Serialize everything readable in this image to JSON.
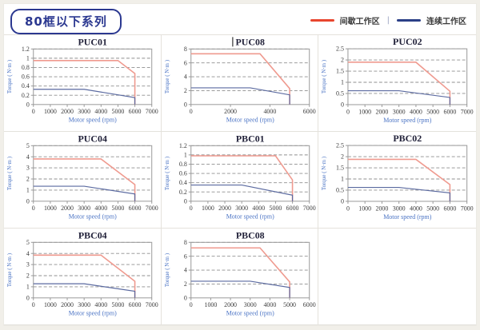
{
  "header": {
    "title": "80框以下系列"
  },
  "legend": {
    "separator": "|",
    "items": [
      {
        "label": "间歇工作区",
        "color": "#e8452e"
      },
      {
        "label": "连续工作区",
        "color": "#2b3f87"
      }
    ]
  },
  "colors": {
    "accent_navy": "#2b3890",
    "chart_red": "#ef9a8f",
    "chart_blue": "#5b6aa0",
    "grid_dash": "#8f8f8f",
    "plot_border": "#999999",
    "axis_label_blue": "#4a73c4",
    "tick_text": "#3c3c3c",
    "title_text": "#22223a"
  },
  "chart_data": [
    {
      "type": "line",
      "title": "PUC01",
      "title_cursor": false,
      "xlabel": "Motor speed (rpm)",
      "ylabel": "Torque ( N·m )",
      "xlim": [
        0,
        7000
      ],
      "xticks": [
        0,
        1000,
        2000,
        3000,
        4000,
        5000,
        6000,
        7000
      ],
      "ylim": [
        0,
        1.2
      ],
      "yticks": [
        0,
        0.2,
        0.4,
        0.6,
        0.8,
        1,
        1.2
      ],
      "grid": "horizontal-dashed",
      "legend_position": "none",
      "series": [
        {
          "name": "间歇工作区",
          "role": "intermittent",
          "points": [
            [
              0,
              0.95
            ],
            [
              5000,
              0.95
            ],
            [
              6000,
              0.67
            ],
            [
              6000,
              0
            ]
          ]
        },
        {
          "name": "连续工作区",
          "role": "continuous",
          "points": [
            [
              0,
              0.33
            ],
            [
              3000,
              0.33
            ],
            [
              6000,
              0.15
            ],
            [
              6000,
              0
            ]
          ]
        }
      ]
    },
    {
      "type": "line",
      "title": "PUC08",
      "title_cursor": true,
      "xlabel": "Motor speed (rpm)",
      "ylabel": "Torque ( N·m )",
      "xlim": [
        0,
        6000
      ],
      "xticks": [
        0,
        2000,
        4000,
        6000
      ],
      "ylim": [
        0,
        8
      ],
      "yticks": [
        0,
        2,
        4,
        6,
        8
      ],
      "grid": "horizontal-dashed",
      "legend_position": "none",
      "series": [
        {
          "name": "间歇工作区",
          "role": "intermittent",
          "points": [
            [
              0,
              7.3
            ],
            [
              3500,
              7.3
            ],
            [
              5000,
              2.3
            ],
            [
              5000,
              0
            ]
          ]
        },
        {
          "name": "连续工作区",
          "role": "continuous",
          "points": [
            [
              0,
              2.4
            ],
            [
              3000,
              2.4
            ],
            [
              5000,
              1.4
            ],
            [
              5000,
              0
            ]
          ]
        }
      ]
    },
    {
      "type": "line",
      "title": "PUC02",
      "title_cursor": false,
      "xlabel": "Motor speed (rpm)",
      "ylabel": "Torque ( N·m )",
      "xlim": [
        0,
        7000
      ],
      "xticks": [
        0,
        1000,
        2000,
        3000,
        4000,
        5000,
        6000,
        7000
      ],
      "ylim": [
        0,
        2.5
      ],
      "yticks": [
        0,
        0.5,
        1,
        1.5,
        2,
        2.5
      ],
      "grid": "horizontal-dashed",
      "legend_position": "none",
      "series": [
        {
          "name": "间歇工作区",
          "role": "intermittent",
          "points": [
            [
              0,
              1.9
            ],
            [
              4000,
              1.9
            ],
            [
              6000,
              0.6
            ],
            [
              6000,
              0
            ]
          ]
        },
        {
          "name": "连续工作区",
          "role": "continuous",
          "points": [
            [
              0,
              0.62
            ],
            [
              3000,
              0.62
            ],
            [
              6000,
              0.32
            ],
            [
              6000,
              0
            ]
          ]
        }
      ]
    },
    {
      "type": "line",
      "title": "PUC04",
      "title_cursor": false,
      "xlabel": "Motor speed (rpm)",
      "ylabel": "Torque ( N·m )",
      "xlim": [
        0,
        7000
      ],
      "xticks": [
        0,
        1000,
        2000,
        3000,
        4000,
        5000,
        6000,
        7000
      ],
      "ylim": [
        0,
        5
      ],
      "yticks": [
        0,
        1,
        2,
        3,
        4,
        5
      ],
      "grid": "horizontal-dashed",
      "legend_position": "none",
      "series": [
        {
          "name": "间歇工作区",
          "role": "intermittent",
          "points": [
            [
              0,
              3.8
            ],
            [
              4000,
              3.8
            ],
            [
              6000,
              1.5
            ],
            [
              6000,
              0
            ]
          ]
        },
        {
          "name": "连续工作区",
          "role": "continuous",
          "points": [
            [
              0,
              1.35
            ],
            [
              3000,
              1.35
            ],
            [
              6000,
              0.65
            ],
            [
              6000,
              0
            ]
          ]
        }
      ]
    },
    {
      "type": "line",
      "title": "PBC01",
      "title_cursor": false,
      "xlabel": "Motor speed (rpm)",
      "ylabel": "Torque ( N·m )",
      "xlim": [
        0,
        7000
      ],
      "xticks": [
        0,
        1000,
        2000,
        3000,
        4000,
        5000,
        6000,
        7000
      ],
      "ylim": [
        0,
        1.2
      ],
      "yticks": [
        0,
        0.2,
        0.4,
        0.6,
        0.8,
        1,
        1.2
      ],
      "grid": "horizontal-dashed",
      "legend_position": "none",
      "series": [
        {
          "name": "间歇工作区",
          "role": "intermittent",
          "points": [
            [
              0,
              0.98
            ],
            [
              5000,
              0.98
            ],
            [
              6000,
              0.46
            ],
            [
              6000,
              0
            ]
          ]
        },
        {
          "name": "连续工作区",
          "role": "continuous",
          "points": [
            [
              0,
              0.35
            ],
            [
              3000,
              0.35
            ],
            [
              6000,
              0.13
            ],
            [
              6000,
              0
            ]
          ]
        }
      ]
    },
    {
      "type": "line",
      "title": "PBC02",
      "title_cursor": false,
      "xlabel": "Motor speed (rpm)",
      "ylabel": "Torque ( N·m )",
      "xlim": [
        0,
        7000
      ],
      "xticks": [
        0,
        1000,
        2000,
        3000,
        4000,
        5000,
        6000,
        7000
      ],
      "ylim": [
        0,
        2.5
      ],
      "yticks": [
        0,
        0.5,
        1,
        1.5,
        2,
        2.5
      ],
      "grid": "horizontal-dashed",
      "legend_position": "none",
      "series": [
        {
          "name": "间歇工作区",
          "role": "intermittent",
          "points": [
            [
              0,
              1.88
            ],
            [
              4000,
              1.88
            ],
            [
              6000,
              0.75
            ],
            [
              6000,
              0
            ]
          ]
        },
        {
          "name": "连续工作区",
          "role": "continuous",
          "points": [
            [
              0,
              0.62
            ],
            [
              3000,
              0.62
            ],
            [
              6000,
              0.38
            ],
            [
              6000,
              0
            ]
          ]
        }
      ]
    },
    {
      "type": "line",
      "title": "PBC04",
      "title_cursor": false,
      "xlabel": "Motor speed (rpm)",
      "ylabel": "Torque ( N·m )",
      "xlim": [
        0,
        7000
      ],
      "xticks": [
        0,
        1000,
        2000,
        3000,
        4000,
        5000,
        6000,
        7000
      ],
      "ylim": [
        0,
        5
      ],
      "yticks": [
        0,
        1,
        2,
        3,
        4,
        5
      ],
      "grid": "horizontal-dashed",
      "legend_position": "none",
      "series": [
        {
          "name": "间歇工作区",
          "role": "intermittent",
          "points": [
            [
              0,
              3.85
            ],
            [
              4000,
              3.85
            ],
            [
              6000,
              1.5
            ],
            [
              6000,
              0
            ]
          ]
        },
        {
          "name": "连续工作区",
          "role": "continuous",
          "points": [
            [
              0,
              1.27
            ],
            [
              3000,
              1.27
            ],
            [
              6000,
              0.6
            ],
            [
              6000,
              0
            ]
          ]
        }
      ]
    },
    {
      "type": "line",
      "title": "PBC08",
      "title_cursor": false,
      "xlabel": "Motor speed (rpm)",
      "ylabel": "Torque ( N·m )",
      "xlim": [
        0,
        6000
      ],
      "xticks": [
        0,
        1000,
        2000,
        3000,
        4000,
        5000,
        6000
      ],
      "ylim": [
        0,
        8
      ],
      "yticks": [
        0,
        2,
        4,
        6,
        8
      ],
      "grid": "horizontal-dashed",
      "legend_position": "none",
      "series": [
        {
          "name": "间歇工作区",
          "role": "intermittent",
          "points": [
            [
              0,
              7.2
            ],
            [
              3500,
              7.2
            ],
            [
              5000,
              2.3
            ],
            [
              5000,
              0
            ]
          ]
        },
        {
          "name": "连续工作区",
          "role": "continuous",
          "points": [
            [
              0,
              2.4
            ],
            [
              3000,
              2.4
            ],
            [
              5000,
              1.5
            ],
            [
              5000,
              0
            ]
          ]
        }
      ]
    }
  ]
}
